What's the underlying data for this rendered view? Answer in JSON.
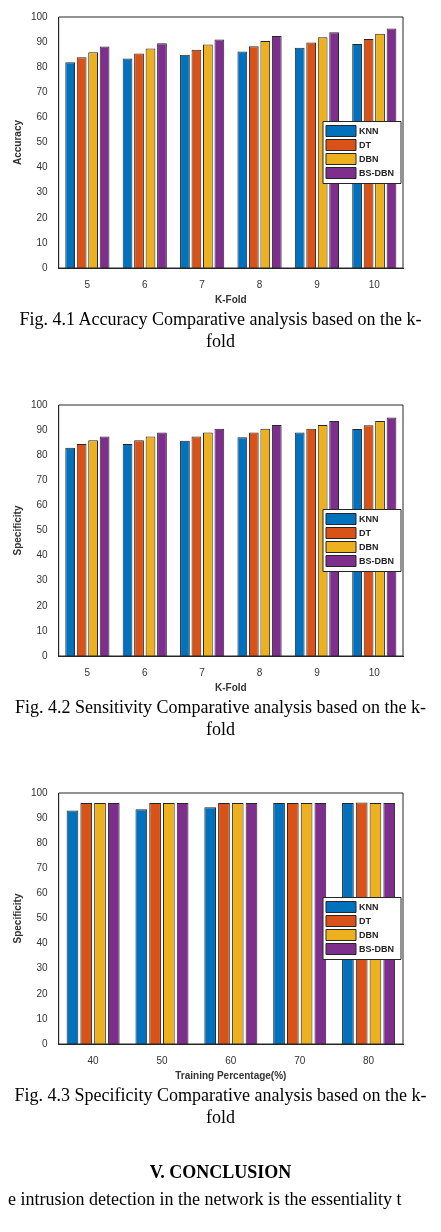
{
  "chart_data": [
    {
      "type": "bar",
      "title": "Fig. 4.1 Accuracy Comparative analysis based on the k-fold",
      "xlabel": "K-Fold",
      "ylabel": "Accuracy",
      "categories": [
        "5",
        "6",
        "7",
        "8",
        "9",
        "10"
      ],
      "series": [
        {
          "name": "KNN",
          "color": "#0072bd",
          "values": [
            82,
            83.5,
            85,
            86.3,
            87.7,
            89.2
          ]
        },
        {
          "name": "DT",
          "color": "#d95319",
          "values": [
            84,
            85.5,
            87,
            88.3,
            89.8,
            91.2
          ]
        },
        {
          "name": "DBN",
          "color": "#edb120",
          "values": [
            86,
            87.5,
            89,
            90.4,
            91.9,
            93.3
          ]
        },
        {
          "name": "BS-DBN",
          "color": "#7e2f8e",
          "values": [
            88.2,
            89.5,
            91,
            92.4,
            93.9,
            95.4
          ]
        }
      ],
      "ylim": [
        0,
        100
      ],
      "yticks": [
        0,
        10,
        20,
        30,
        40,
        50,
        60,
        70,
        80,
        90,
        100
      ],
      "grid": false,
      "legend": "right"
    },
    {
      "type": "bar",
      "title": "Fig. 4.2 Sensitivity Comparative analysis based on the k-fold",
      "xlabel": "K-Fold",
      "ylabel": "Specificity",
      "categories": [
        "5",
        "6",
        "7",
        "8",
        "9",
        "10"
      ],
      "series": [
        {
          "name": "KNN",
          "color": "#0072bd",
          "values": [
            83,
            84.5,
            85.8,
            87.2,
            89,
            90.4
          ]
        },
        {
          "name": "DT",
          "color": "#d95319",
          "values": [
            84.5,
            86,
            87.5,
            89,
            90.5,
            91.9
          ]
        },
        {
          "name": "DBN",
          "color": "#edb120",
          "values": [
            86,
            87.5,
            89,
            90.5,
            92,
            93.6
          ]
        },
        {
          "name": "BS-DBN",
          "color": "#7e2f8e",
          "values": [
            87.5,
            89,
            90.5,
            92,
            93.6,
            95
          ]
        }
      ],
      "ylim": [
        0,
        100
      ],
      "yticks": [
        0,
        10,
        20,
        30,
        40,
        50,
        60,
        70,
        80,
        90,
        100
      ],
      "grid": false,
      "legend": "right"
    },
    {
      "type": "bar",
      "title": "Fig. 4.3 Specificity Comparative analysis based on the k-fold",
      "xlabel": "Training Percentage(%)",
      "ylabel": "Specificity",
      "categories": [
        "40",
        "50",
        "60",
        "70",
        "80"
      ],
      "series": [
        {
          "name": "KNN",
          "color": "#0072bd",
          "values": [
            93,
            93.5,
            94.3,
            96,
            96
          ]
        },
        {
          "name": "DT",
          "color": "#d95319",
          "values": [
            96,
            96,
            96,
            96,
            96.2
          ]
        },
        {
          "name": "DBN",
          "color": "#edb120",
          "values": [
            96,
            96,
            96,
            96,
            96
          ]
        },
        {
          "name": "BS-DBN",
          "color": "#7e2f8e",
          "values": [
            96,
            96,
            96,
            96,
            96
          ]
        }
      ],
      "ylim": [
        0,
        100
      ],
      "yticks": [
        0,
        10,
        20,
        30,
        40,
        50,
        60,
        70,
        80,
        90,
        100
      ],
      "grid": false,
      "legend": "right",
      "annotations": [
        "V.   CONCLUSION",
        "e intrusion detection in the network is the essentiality t"
      ]
    }
  ]
}
